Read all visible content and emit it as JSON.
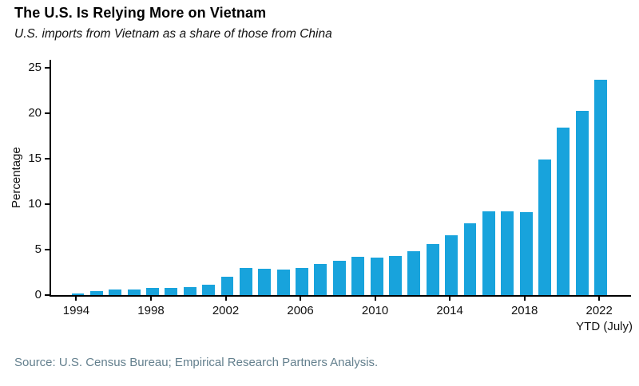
{
  "chart_data": {
    "type": "bar",
    "title": "The U.S. Is Relying More on Vietnam",
    "subtitle": "U.S. imports from Vietnam as a share of those from China",
    "ylabel": "Percentage",
    "ylim": [
      0,
      25
    ],
    "yticks": [
      0,
      5,
      10,
      15,
      20,
      25
    ],
    "grid": false,
    "legend": "none",
    "bar_color": "#18a3dc",
    "categories": [
      1994,
      1995,
      1996,
      1997,
      1998,
      1999,
      2000,
      2001,
      2002,
      2003,
      2004,
      2005,
      2006,
      2007,
      2008,
      2009,
      2010,
      2011,
      2012,
      2013,
      2014,
      2015,
      2016,
      2017,
      2018,
      2019,
      2020,
      2021,
      2022
    ],
    "values": [
      0.2,
      0.4,
      0.6,
      0.6,
      0.8,
      0.8,
      0.9,
      1.1,
      2.0,
      3.0,
      2.9,
      2.8,
      3.0,
      3.4,
      3.8,
      4.2,
      4.1,
      4.3,
      4.8,
      5.6,
      6.6,
      7.9,
      9.2,
      9.2,
      9.1,
      14.9,
      18.4,
      20.3,
      23.7
    ],
    "xticks": [
      1994,
      1998,
      2002,
      2006,
      2010,
      2014,
      2018,
      2022
    ],
    "x_axis_note": "YTD (July)"
  },
  "footer": {
    "source": "Source: U.S. Census Bureau; Empirical Research Partners Analysis."
  }
}
